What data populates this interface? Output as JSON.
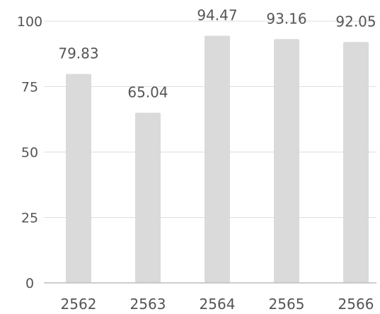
{
  "chart_data": {
    "type": "bar",
    "title": "",
    "xlabel": "",
    "ylabel": "",
    "categories": [
      "2562",
      "2563",
      "2564",
      "2565",
      "2566"
    ],
    "values": [
      79.83,
      65.04,
      94.47,
      93.16,
      92.05
    ],
    "value_labels": [
      "79.83",
      "65.04",
      "94.47",
      "93.16",
      "92.05"
    ],
    "ylim": [
      0,
      100
    ],
    "yticks": [
      0,
      25,
      50,
      75,
      100
    ],
    "grid": true,
    "legend": "none",
    "colors": {
      "bar": "#dadada",
      "text": "#555555",
      "grid": "#dedede",
      "axis": "#bdbdbd"
    }
  }
}
